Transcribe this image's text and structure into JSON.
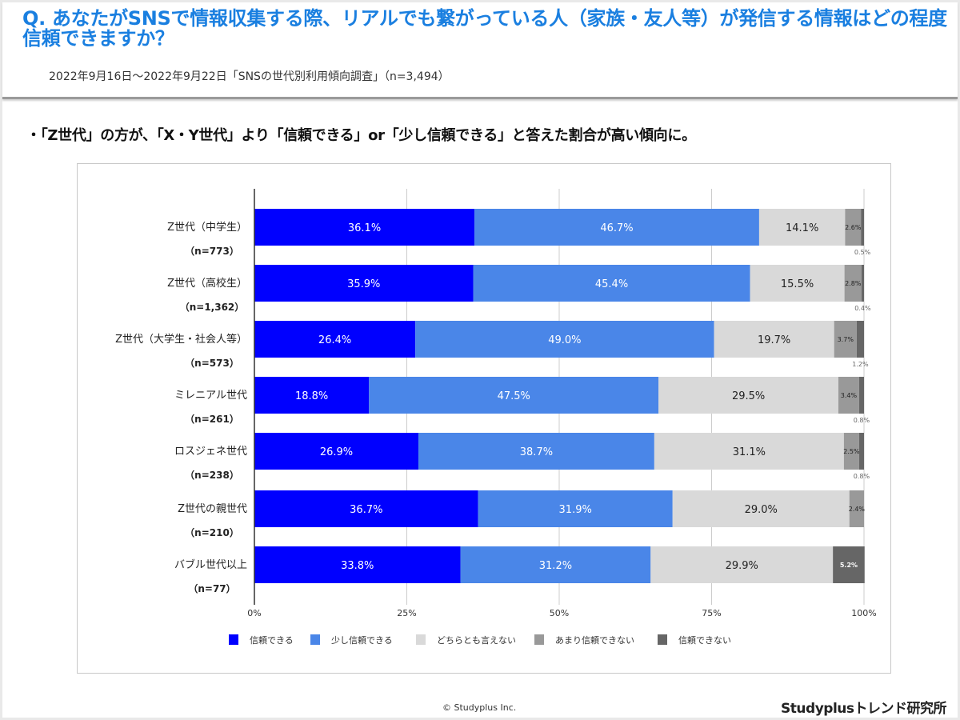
{
  "header": {
    "title": "Q. あなたがSNSで情報収集する際、リアルでも繋がっている人（家族・友人等）が発信する情報はどの程度信頼できますか？",
    "subtitle": "2022年9月16日～2022年9月22日「SNSの世代別利用傾向調査」（n=3,494）"
  },
  "headline": "・「Z世代」の方が、「X・Y世代」より「信頼できる」or「少し信頼できる」と答えた割合が高い傾向に。",
  "footer": {
    "copyright": "© Studyplus Inc.",
    "brand": "Studyplusトレンド研究所"
  },
  "chart_data": {
    "type": "bar",
    "orientation": "horizontal",
    "stacked": true,
    "title": "",
    "xlabel": "",
    "ylabel": "",
    "xlim": [
      0,
      100
    ],
    "x_ticks": [
      "0%",
      "25%",
      "50%",
      "75%",
      "100%"
    ],
    "grid": true,
    "legend_position": "bottom",
    "categories": [
      {
        "label": "Z世代（中学生）",
        "n": "（n=773）"
      },
      {
        "label": "Z世代（高校生）",
        "n": "（n=1,362）"
      },
      {
        "label": "Z世代（大学生・社会人等）",
        "n": "（n=573）"
      },
      {
        "label": "ミレニアル世代",
        "n": "（n=261）"
      },
      {
        "label": "ロスジェネ世代",
        "n": "（n=238）"
      },
      {
        "label": "Z世代の親世代",
        "n": "（n=210）"
      },
      {
        "label": "バブル世代以上",
        "n": "（n=77）"
      }
    ],
    "series": [
      {
        "name": "信頼できる",
        "color": "#0000ff",
        "label_color": "#ffffff",
        "values": [
          36.1,
          35.9,
          26.4,
          18.8,
          26.9,
          36.7,
          33.8
        ]
      },
      {
        "name": "少し信頼できる",
        "color": "#4a86e8",
        "label_color": "#ffffff",
        "values": [
          46.7,
          45.4,
          49.0,
          47.5,
          38.7,
          31.9,
          31.2
        ]
      },
      {
        "name": "どちらとも言えない",
        "color": "#d9d9d9",
        "label_color": "#222222",
        "values": [
          14.1,
          15.5,
          19.7,
          29.5,
          31.1,
          29.0,
          29.9
        ]
      },
      {
        "name": "あまり信頼できない",
        "color": "#999999",
        "label_color": "#222222",
        "values": [
          2.6,
          2.8,
          3.7,
          3.4,
          2.5,
          2.4,
          0
        ]
      },
      {
        "name": "信頼できない",
        "color": "#666666",
        "label_color": "#ffffff",
        "values": [
          0.5,
          0.4,
          1.2,
          0.8,
          0.8,
          0,
          5.2
        ]
      }
    ]
  }
}
